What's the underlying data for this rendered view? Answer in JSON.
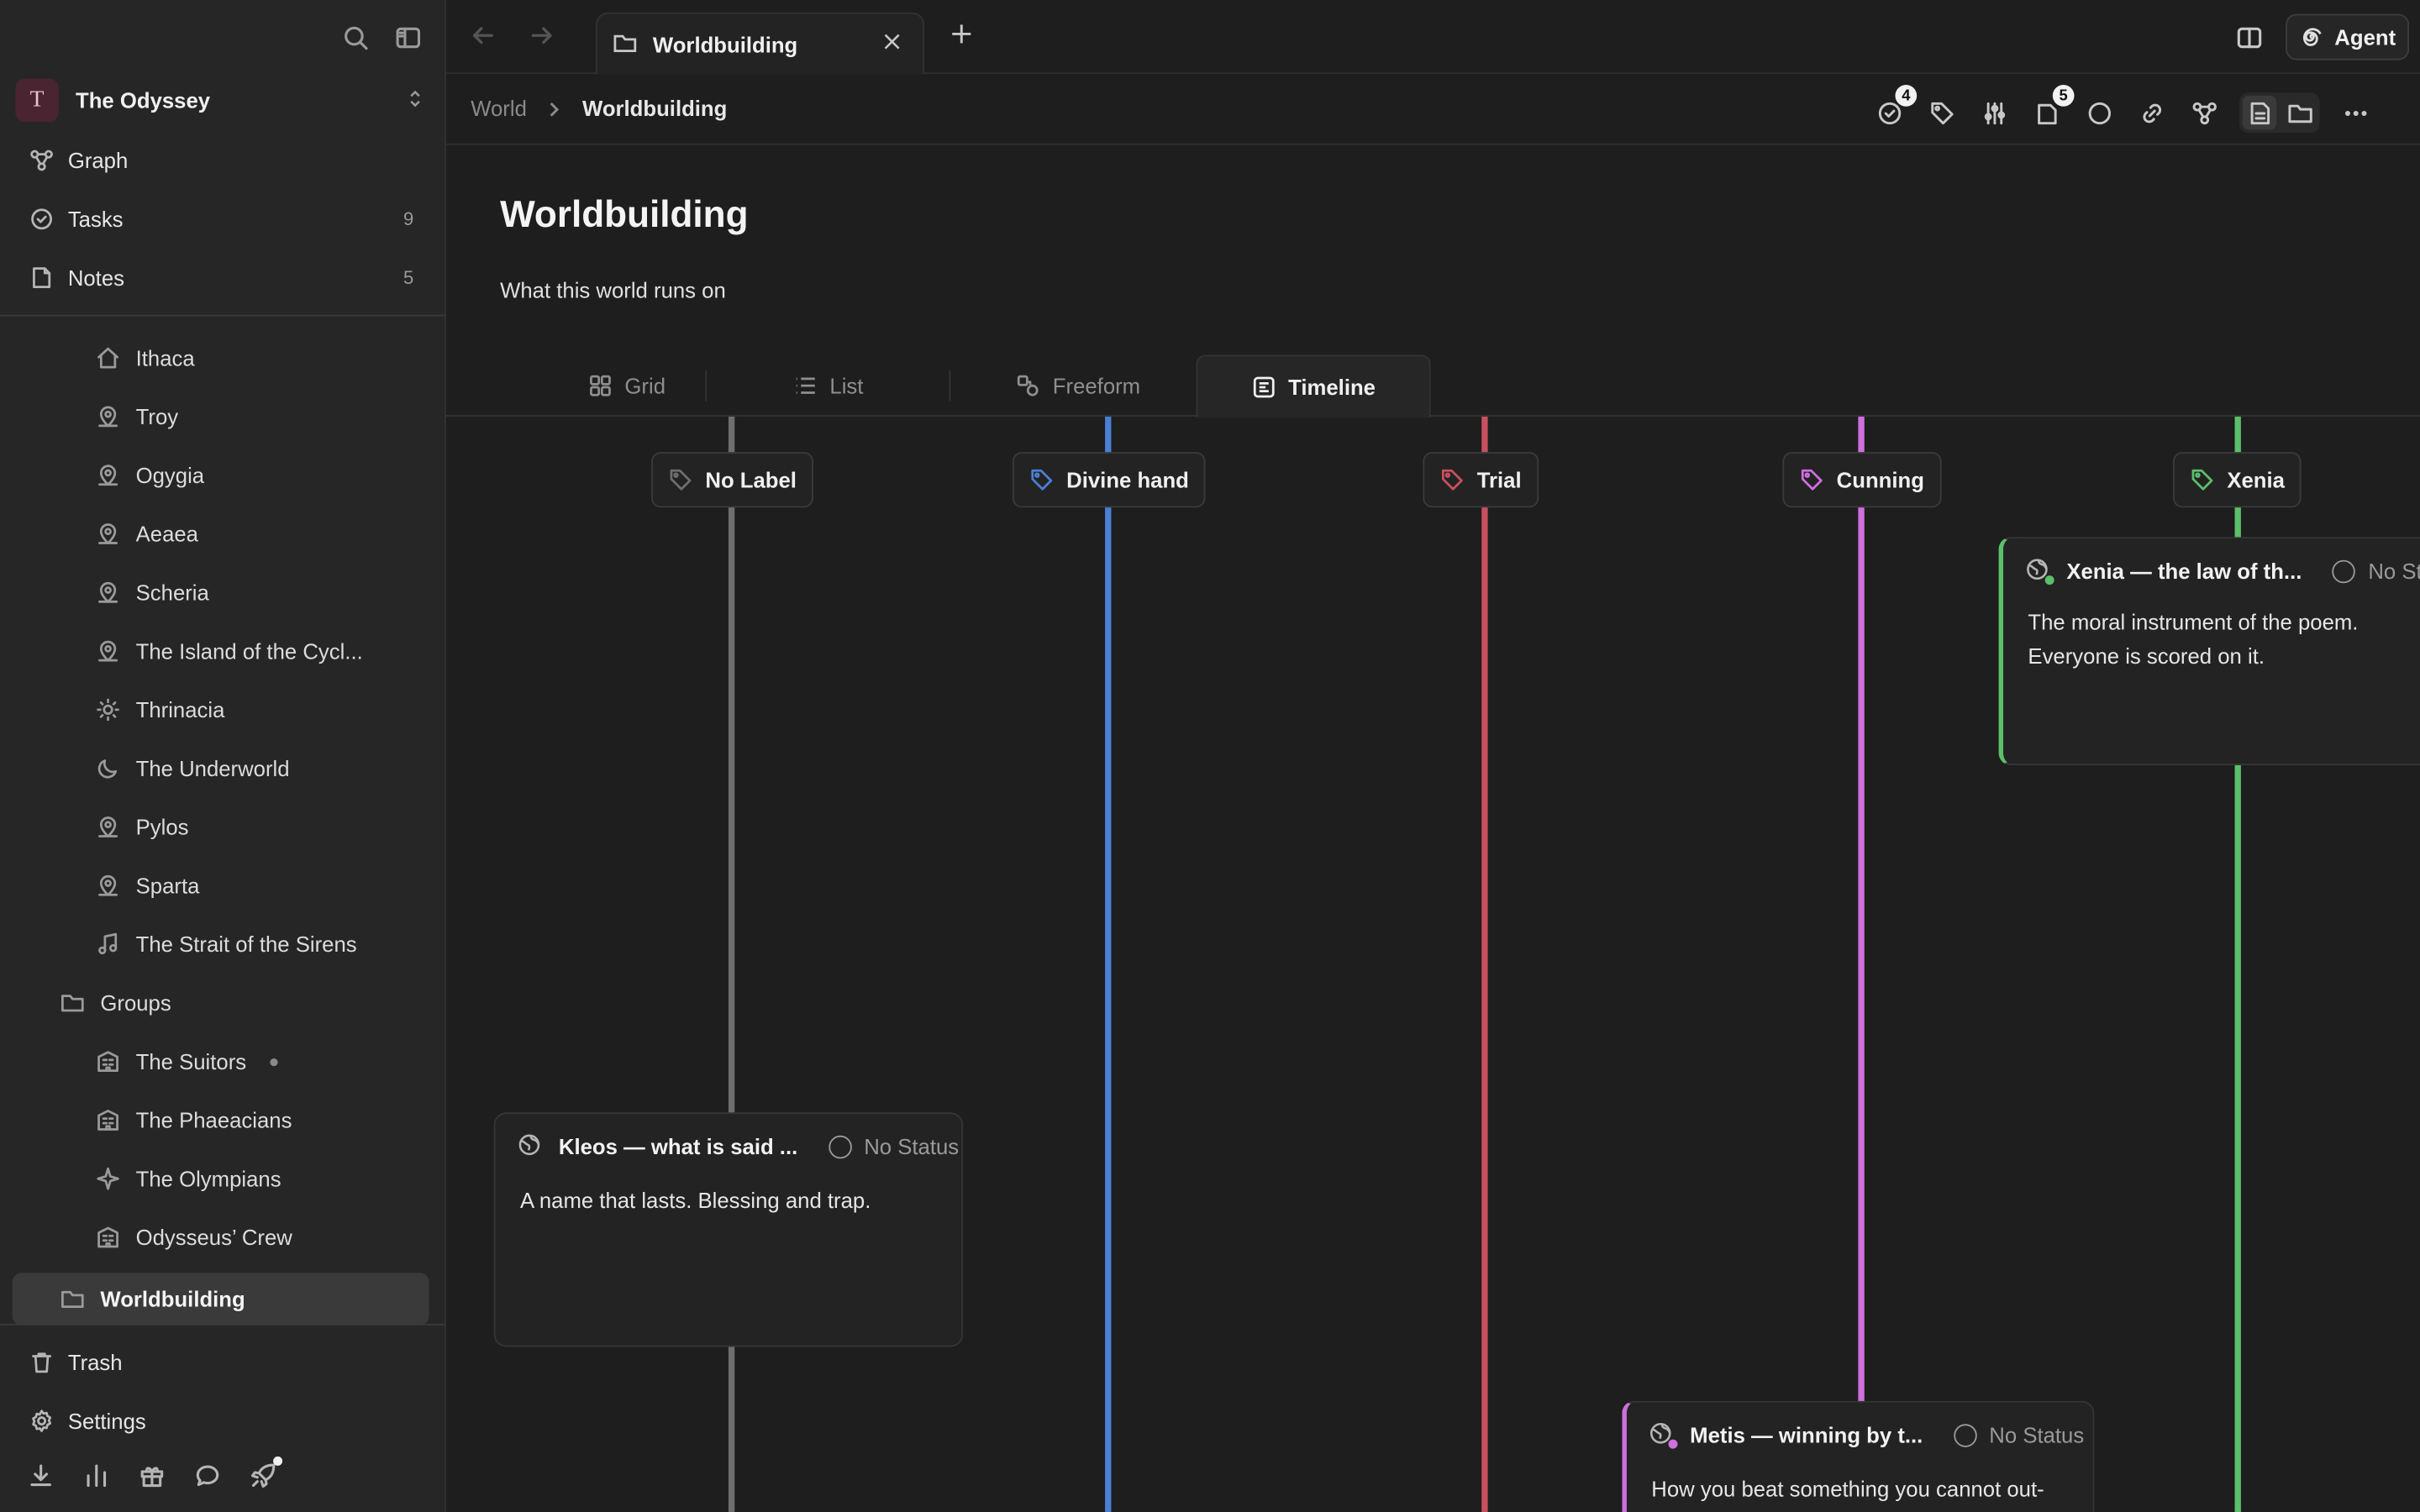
{
  "workspace": {
    "initial": "T",
    "name": "The Odyssey"
  },
  "nav": [
    {
      "label": "Graph",
      "icon": "graph-icon",
      "count": ""
    },
    {
      "label": "Tasks",
      "icon": "task-check-icon",
      "count": "9"
    },
    {
      "label": "Notes",
      "icon": "note-icon",
      "count": "5"
    }
  ],
  "tree": {
    "ithaca": "Ithaca",
    "troy": "Troy",
    "ogygia": "Ogygia",
    "aeaea": "Aeaea",
    "scheria": "Scheria",
    "cyclops": "The Island of the Cycl...",
    "thrinacia": "Thrinacia",
    "underworld": "The Underworld",
    "pylos": "Pylos",
    "sparta": "Sparta",
    "sirens": "The Strait of the Sirens",
    "groups": "Groups",
    "suitors": "The Suitors",
    "phaeacians": "The Phaeacians",
    "olympians": "The Olympians",
    "crew": "Odysseus’ Crew",
    "worldbuilding": "Worldbuilding"
  },
  "bottom_nav": {
    "trash": "Trash",
    "settings": "Settings"
  },
  "tab": {
    "title": "Worldbuilding"
  },
  "agent": {
    "label": "Agent"
  },
  "breadcrumb": {
    "parent": "World",
    "current": "Worldbuilding"
  },
  "toolbar": {
    "tasks_badge": "4",
    "pages_badge": "5"
  },
  "page": {
    "title": "Worldbuilding",
    "description": "What this world runs on"
  },
  "views": {
    "grid": "Grid",
    "list": "List",
    "freeform": "Freeform",
    "timeline": "Timeline"
  },
  "colors": {
    "no_label": "#6e6e6e",
    "divine_hand": "#4a7fd6",
    "trial": "#c9505f",
    "cunning": "#cf6fe0",
    "xenia": "#5cbf6a"
  },
  "lanes": {
    "no_label": "No Label",
    "divine_hand": "Divine hand",
    "trial": "Trial",
    "cunning": "Cunning",
    "xenia": "Xenia"
  },
  "cards": {
    "kleos": {
      "title": "Kleos — what is said ...",
      "status": "No Status",
      "body": "A name that lasts. Blessing and trap."
    },
    "xenia": {
      "title": "Xenia — the law of th...",
      "status": "No Sta",
      "body_line1": "The moral instrument of the poem.",
      "body_line2": "Everyone is scored on it."
    },
    "metis": {
      "title": "Metis — winning by t...",
      "status": "No Status",
      "body": "How you beat something you cannot out-"
    }
  }
}
